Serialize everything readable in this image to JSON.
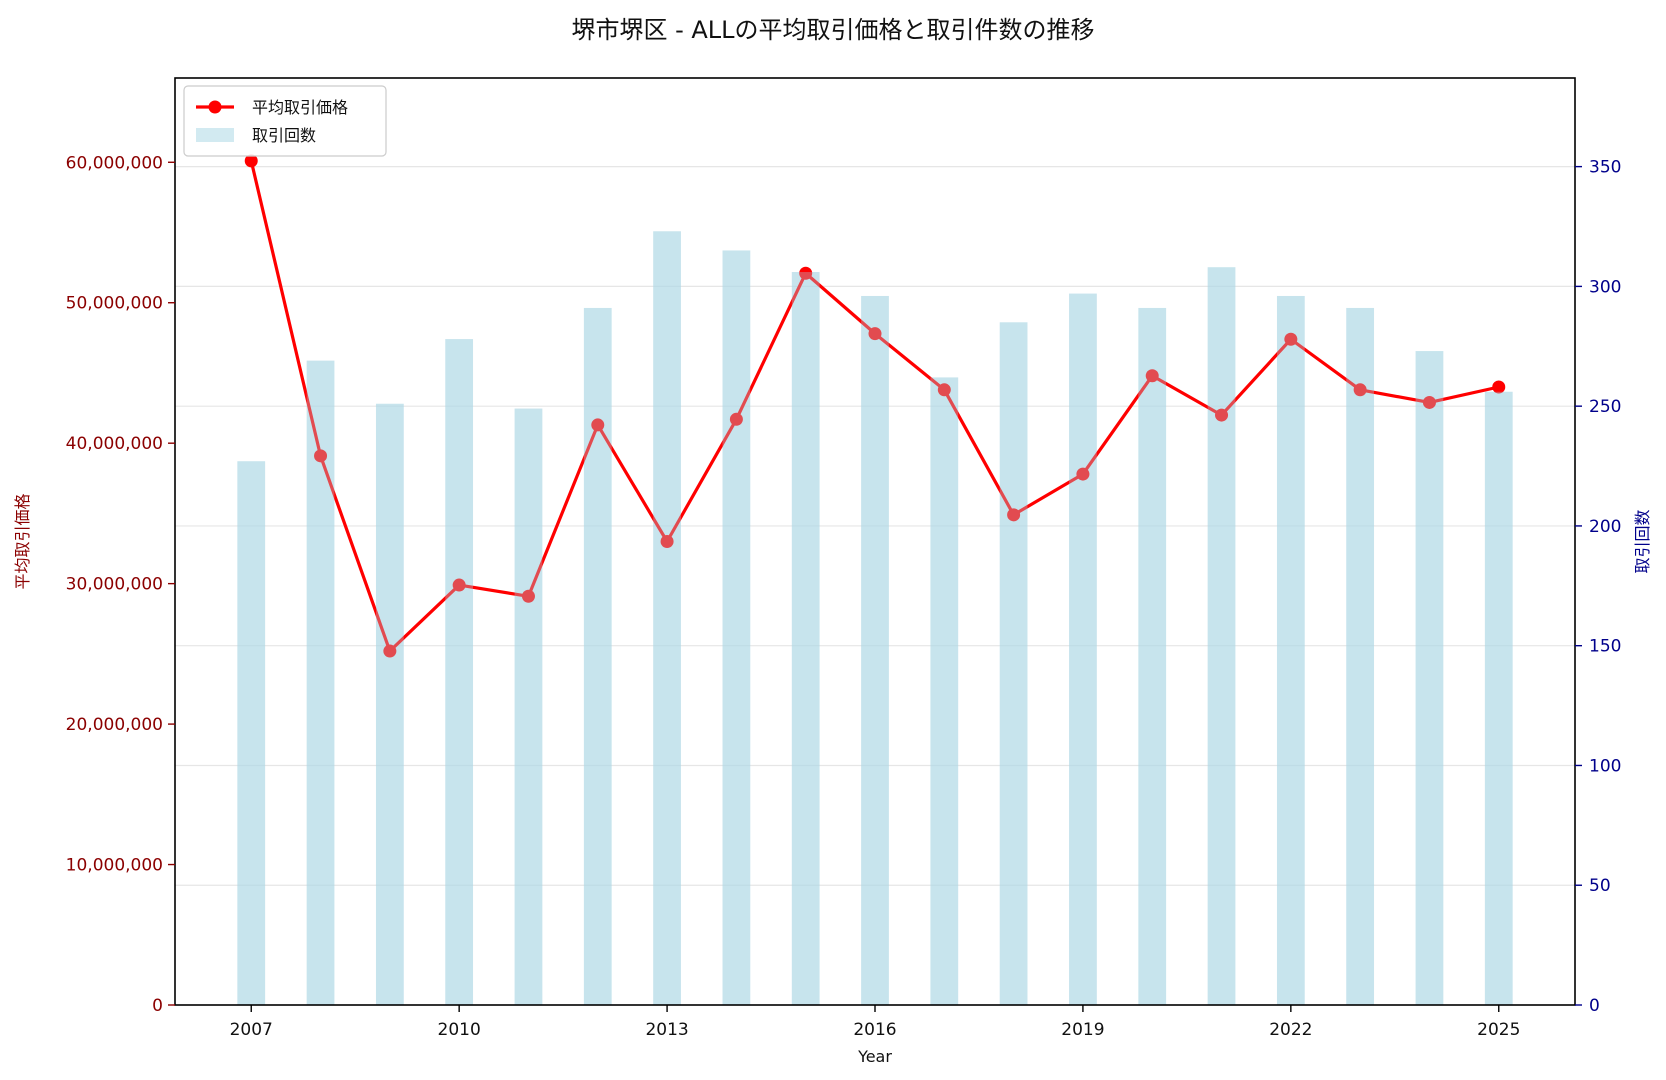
{
  "chart_data": {
    "type": "bar+line",
    "title": "堺市堺区 - ALLの平均取引価格と取引件数の推移",
    "xlabel": "Year",
    "ylabel_left": "平均取引価格",
    "ylabel_right": "取引回数",
    "x": [
      2007,
      2008,
      2009,
      2010,
      2011,
      2012,
      2013,
      2014,
      2015,
      2016,
      2017,
      2018,
      2019,
      2020,
      2021,
      2022,
      2023,
      2024,
      2025
    ],
    "x_ticks": [
      "2007",
      "2010",
      "2013",
      "2016",
      "2019",
      "2022",
      "2025"
    ],
    "xlim": [
      2005.9,
      2026.1
    ],
    "y_left": {
      "ylim": [
        0,
        66000000
      ],
      "ticks": [
        "0",
        "10,000,000",
        "20,000,000",
        "30,000,000",
        "40,000,000",
        "50,000,000",
        "60,000,000"
      ],
      "tick_values": [
        0,
        10000000,
        20000000,
        30000000,
        40000000,
        50000000,
        60000000
      ],
      "color": "#8b0000"
    },
    "y_right": {
      "ylim": [
        0,
        387
      ],
      "ticks": [
        "0",
        "50",
        "100",
        "150",
        "200",
        "250",
        "300",
        "350"
      ],
      "tick_values": [
        0,
        50,
        100,
        150,
        200,
        250,
        300,
        350
      ],
      "color": "#00008b"
    },
    "series": [
      {
        "name": "平均取引価格",
        "type": "line",
        "axis": "left",
        "color": "#ff0000",
        "values": [
          60100000,
          39100000,
          25200000,
          29900000,
          29100000,
          41300000,
          33000000,
          41700000,
          52100000,
          47800000,
          43800000,
          34900000,
          37800000,
          44800000,
          42000000,
          47400000,
          43800000,
          42900000,
          44000000
        ]
      },
      {
        "name": "取引回数",
        "type": "bar",
        "axis": "right",
        "color": "#add8e6",
        "values": [
          227,
          269,
          251,
          278,
          249,
          291,
          323,
          315,
          306,
          296,
          262,
          285,
          297,
          291,
          308,
          296,
          291,
          273,
          256
        ]
      }
    ],
    "grid": true,
    "legend_position": "upper-left"
  }
}
